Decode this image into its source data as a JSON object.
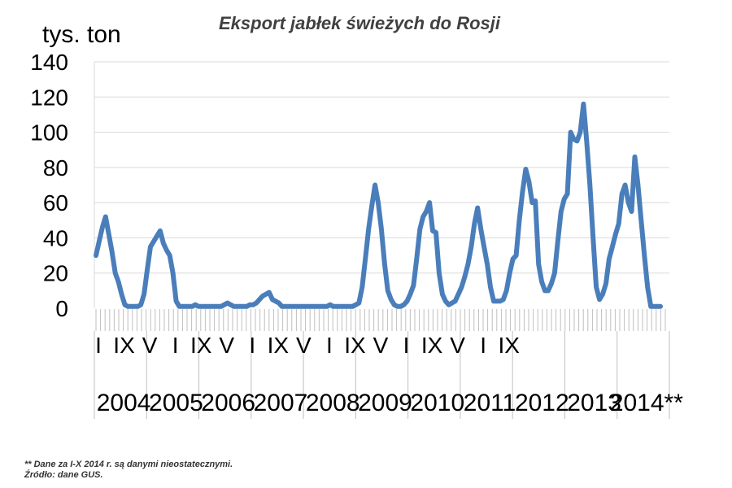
{
  "chart_data": {
    "type": "line",
    "title": "Eksport jabłek świeżych do Rosji",
    "ylabel": "tys. ton",
    "xlabel": "",
    "ylim": [
      0,
      140
    ],
    "yticks": [
      "0",
      "20",
      "40",
      "60",
      "80",
      "100",
      "120",
      "140"
    ],
    "grid": true,
    "legend": "none",
    "color": "#4a7ebb",
    "month_tick_labels": [
      "I",
      "IX",
      "V",
      "I",
      "IX",
      "V",
      "I",
      "IX",
      "V",
      "I",
      "IX",
      "V",
      "I",
      "IX",
      "V",
      "I",
      "IX"
    ],
    "years": [
      "2004",
      "2005",
      "2006",
      "2007",
      "2008",
      "2009",
      "2010",
      "2011",
      "2012",
      "2013",
      "2014**"
    ],
    "series": [
      {
        "name": "",
        "values": [
          30,
          38,
          46,
          52,
          42,
          32,
          20,
          15,
          8,
          2,
          1,
          1,
          1,
          1,
          2,
          8,
          22,
          35,
          38,
          41,
          44,
          37,
          33,
          30,
          20,
          4,
          1,
          1,
          1,
          1,
          1,
          2,
          1,
          1,
          1,
          1,
          1,
          1,
          1,
          1,
          2,
          3,
          2,
          1,
          1,
          1,
          1,
          1,
          2,
          2,
          3,
          5,
          7,
          8,
          9,
          5,
          4,
          3,
          1,
          1,
          1,
          1,
          1,
          1,
          1,
          1,
          1,
          1,
          1,
          1,
          1,
          1,
          1,
          2,
          1,
          1,
          1,
          1,
          1,
          1,
          1,
          2,
          3,
          12,
          28,
          45,
          58,
          70,
          60,
          45,
          25,
          10,
          5,
          2,
          1,
          1,
          2,
          4,
          8,
          13,
          28,
          45,
          52,
          55,
          60,
          44,
          43,
          20,
          8,
          4,
          2,
          3,
          4,
          8,
          12,
          18,
          25,
          35,
          48,
          57,
          45,
          35,
          25,
          12,
          4,
          4,
          4,
          5,
          10,
          20,
          28,
          30,
          50,
          66,
          79,
          72,
          60,
          61,
          25,
          15,
          10,
          10,
          14,
          20,
          38,
          55,
          62,
          65,
          100,
          96,
          95,
          100,
          116,
          95,
          70,
          40,
          12,
          5,
          8,
          14,
          28,
          35,
          42,
          48,
          65,
          70,
          60,
          55,
          86,
          70,
          50,
          30,
          12,
          1,
          1,
          1,
          1
        ]
      }
    ]
  },
  "footnote": "** Dane za I-X 2014 r. są danymi nieostatecznymi.",
  "source": "Źródło: dane GUS."
}
